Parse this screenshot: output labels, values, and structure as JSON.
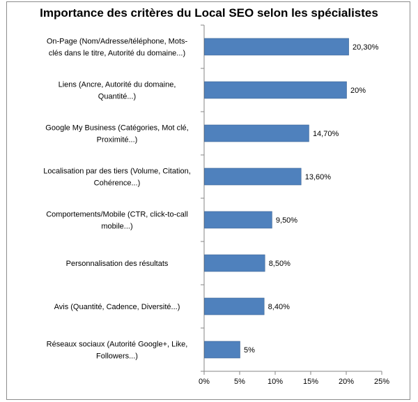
{
  "chart_data": {
    "type": "bar",
    "orientation": "horizontal",
    "title": "Importance des critères du Local SEO selon les spécialistes",
    "xlabel": "",
    "ylabel": "",
    "xlim": [
      0,
      25
    ],
    "x_ticks": [
      "0%",
      "5%",
      "10%",
      "15%",
      "20%",
      "25%"
    ],
    "grid": false,
    "legend": "none",
    "bar_color": "#4f81bd",
    "categories": [
      [
        "On-Page (Nom/Adresse/téléphone, Mots-",
        "clés dans le titre, Autorité du domaine...)"
      ],
      [
        "Liens (Ancre, Autorité du domaine,",
        "Quantité...)"
      ],
      [
        "Google My Business (Catégories, Mot clé,",
        "Proximité...)"
      ],
      [
        "Localisation par des tiers (Volume, Citation,",
        "Cohérence...)"
      ],
      [
        "Comportements/Mobile (CTR, click-to-call",
        "mobile...)"
      ],
      [
        "Personnalisation des résultats"
      ],
      [
        "Avis (Quantité, Cadence, Diversité...)"
      ],
      [
        "Réseaux sociaux (Autorité Google+, Like,",
        "Followers...)"
      ]
    ],
    "values": [
      20.3,
      20,
      14.7,
      13.6,
      9.5,
      8.5,
      8.4,
      5
    ],
    "value_labels": [
      "20,30%",
      "20%",
      "14,70%",
      "13,60%",
      "9,50%",
      "8,50%",
      "8,40%",
      "5%"
    ]
  }
}
